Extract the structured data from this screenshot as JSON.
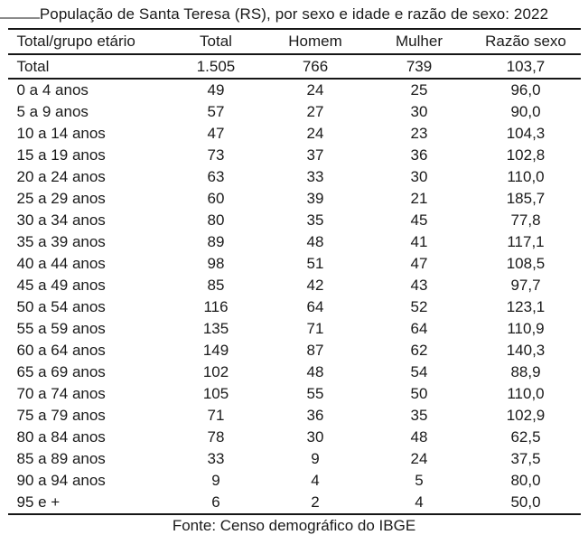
{
  "chart_data": {
    "type": "table",
    "title": "População de Santa Teresa (RS), por sexo e idade e razão de sexo: 2022",
    "columns": [
      "Total/grupo etário",
      "Total",
      "Homem",
      "Mulher",
      "Razão sexo"
    ],
    "total_row": [
      "Total",
      "1.505",
      "766",
      "739",
      "103,7"
    ],
    "rows": [
      [
        "0 a 4 anos",
        "49",
        "24",
        "25",
        "96,0"
      ],
      [
        "5 a 9 anos",
        "57",
        "27",
        "30",
        "90,0"
      ],
      [
        "10 a 14 anos",
        "47",
        "24",
        "23",
        "104,3"
      ],
      [
        "15 a 19 anos",
        "73",
        "37",
        "36",
        "102,8"
      ],
      [
        "20 a 24 anos",
        "63",
        "33",
        "30",
        "110,0"
      ],
      [
        "25 a 29 anos",
        "60",
        "39",
        "21",
        "185,7"
      ],
      [
        "30 a 34 anos",
        "80",
        "35",
        "45",
        "77,8"
      ],
      [
        "35 a 39 anos",
        "89",
        "48",
        "41",
        "117,1"
      ],
      [
        "40 a 44 anos",
        "98",
        "51",
        "47",
        "108,5"
      ],
      [
        "45 a 49 anos",
        "85",
        "42",
        "43",
        "97,7"
      ],
      [
        "50 a 54 anos",
        "116",
        "64",
        "52",
        "123,1"
      ],
      [
        "55 a 59 anos",
        "135",
        "71",
        "64",
        "110,9"
      ],
      [
        "60 a 64 anos",
        "149",
        "87",
        "62",
        "140,3"
      ],
      [
        "65 a 69 anos",
        "102",
        "48",
        "54",
        "88,9"
      ],
      [
        "70 a 74 anos",
        "105",
        "55",
        "50",
        "110,0"
      ],
      [
        "75 a 79 anos",
        "71",
        "36",
        "35",
        "102,9"
      ],
      [
        "80 a 84 anos",
        "78",
        "30",
        "48",
        "62,5"
      ],
      [
        "85 a 89 anos",
        "33",
        "9",
        "24",
        "37,5"
      ],
      [
        "90 a 94 anos",
        "9",
        "4",
        "5",
        "80,0"
      ],
      [
        "95 e +",
        "6",
        "2",
        "4",
        "50,0"
      ]
    ],
    "source_note": "Fonte: Censo demográfico do IBGE",
    "layout": {
      "background": "#ffffff",
      "text_color": "#1a1a1a",
      "rule_color": "#161616",
      "first_column_align": "left",
      "numeric_align": "center",
      "grid": "horizontal-rules-only"
    }
  }
}
